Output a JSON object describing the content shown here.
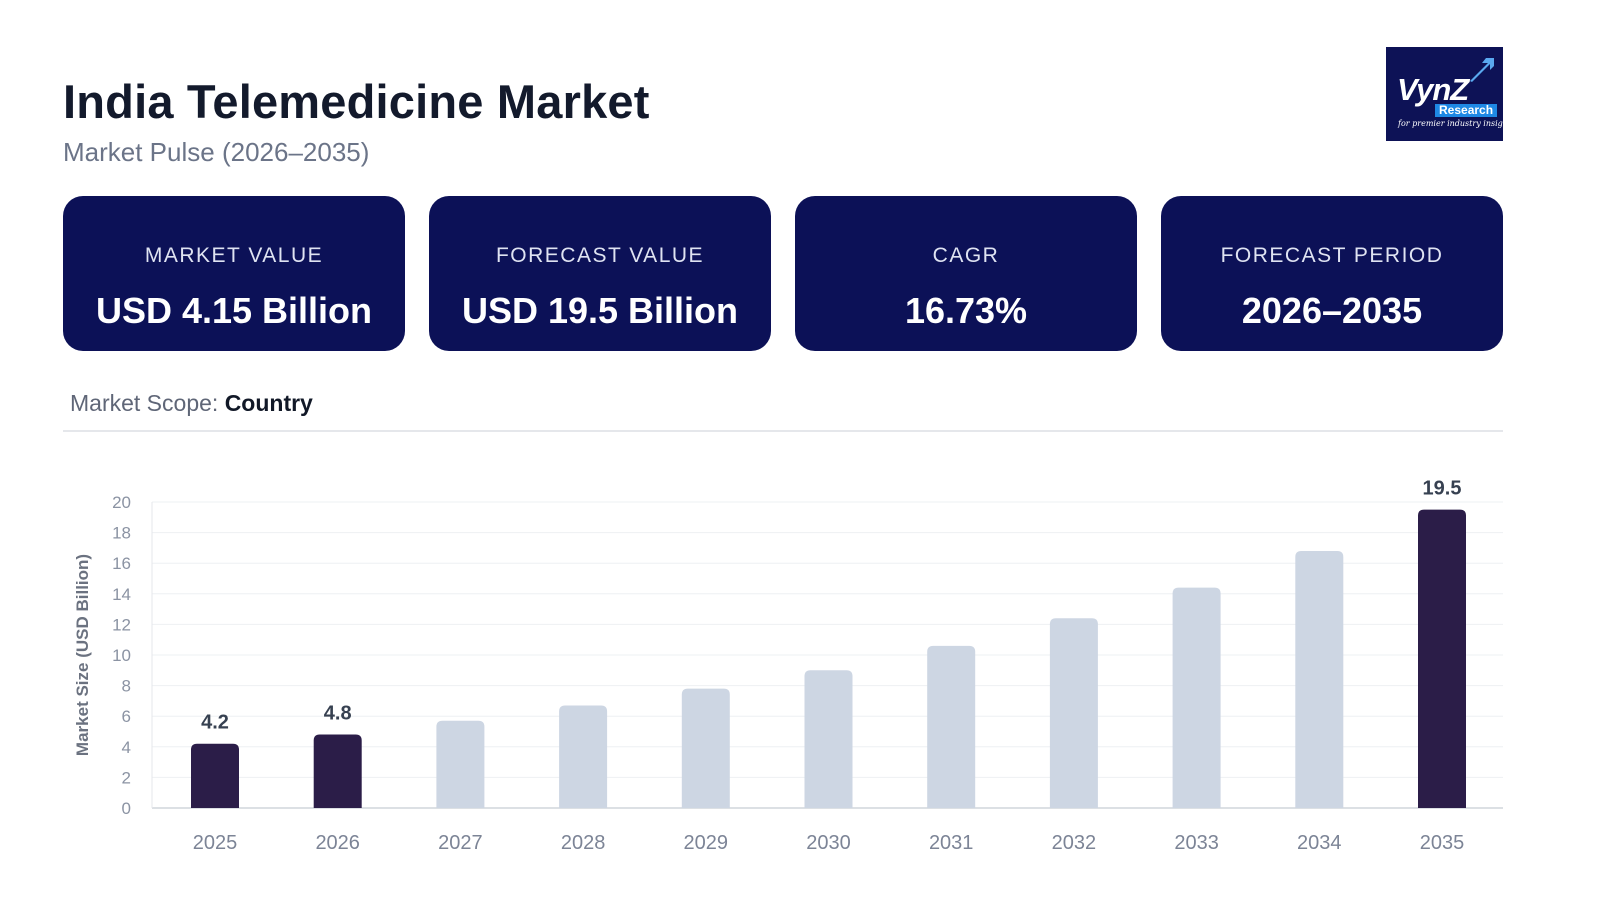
{
  "header": {
    "title": "India Telemedicine Market",
    "subtitle": "Market Pulse (2026–2035)"
  },
  "logo": {
    "brand": "VynZ",
    "research": "Research",
    "tagline": "for premier industry insights",
    "background": "#0d1256"
  },
  "cards": [
    {
      "label": "MARKET VALUE",
      "value": "USD 4.15 Billion"
    },
    {
      "label": "FORECAST VALUE",
      "value": "USD 19.5 Billion"
    },
    {
      "label": "CAGR",
      "value": "16.73%"
    },
    {
      "label": "FORECAST PERIOD",
      "value": "2026–2035"
    }
  ],
  "scope": {
    "label": "Market Scope:",
    "value": "Country"
  },
  "colors": {
    "card_bg": "#0c1157",
    "bar_highlight": "#2b1d48",
    "bar_muted": "#cdd6e3"
  },
  "chart_data": {
    "type": "bar",
    "title": "",
    "xlabel": "",
    "ylabel": "Market Size (USD Billion)",
    "ylim": [
      0,
      20
    ],
    "yticks": [
      0,
      2,
      4,
      6,
      8,
      10,
      12,
      14,
      16,
      18,
      20
    ],
    "categories": [
      "2025",
      "2026",
      "2027",
      "2028",
      "2029",
      "2030",
      "2031",
      "2032",
      "2033",
      "2034",
      "2035"
    ],
    "values": [
      4.2,
      4.8,
      5.7,
      6.7,
      7.8,
      9.0,
      10.6,
      12.4,
      14.4,
      16.8,
      19.5
    ],
    "highlighted": [
      true,
      true,
      false,
      false,
      false,
      false,
      false,
      false,
      false,
      false,
      true
    ],
    "data_labels": [
      "4.2",
      "4.8",
      "",
      "",
      "",
      "",
      "",
      "",
      "",
      "",
      "19.5"
    ],
    "grid": true
  }
}
